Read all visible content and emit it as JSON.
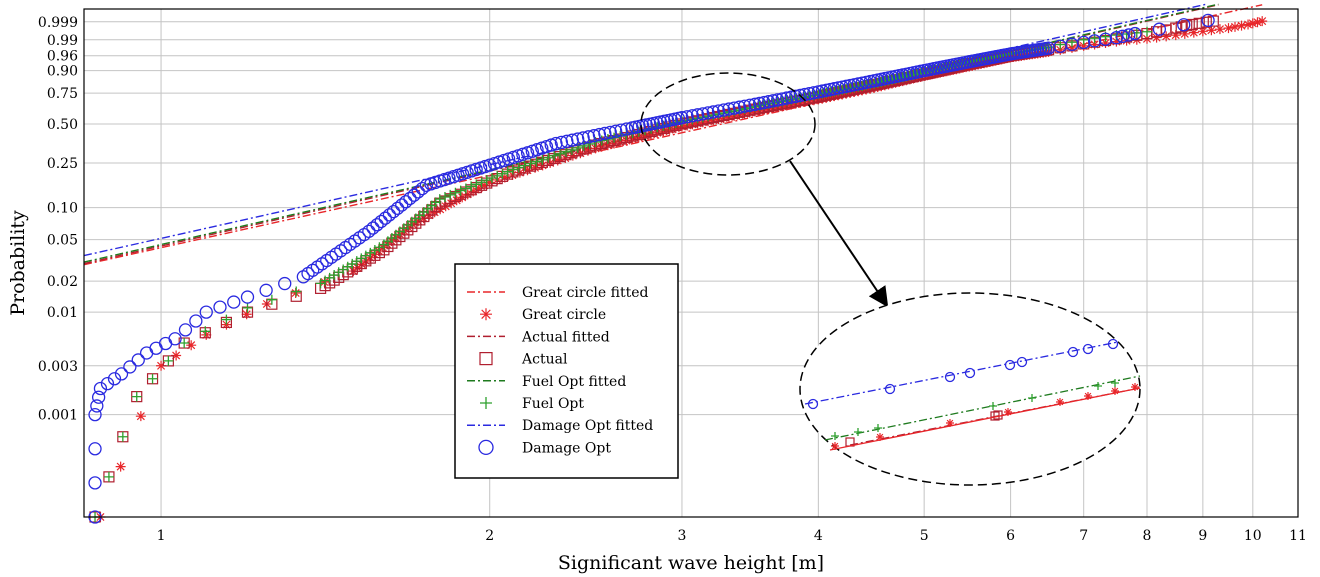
{
  "chart_data": {
    "type": "scatter",
    "xlabel": "Significant wave height [m]",
    "ylabel": "Probability",
    "x_scale": "log",
    "y_scale": "weibull-probability",
    "xlim": [
      0.85,
      11
    ],
    "ylim": [
      0.0001,
      0.9999
    ],
    "x_ticks": [
      1,
      2,
      3,
      4,
      5,
      6,
      7,
      8,
      9,
      10,
      11
    ],
    "x_tick_labels": [
      "1",
      "2",
      "3",
      "4",
      "5",
      "6",
      "7",
      "8",
      "9",
      "10",
      "11"
    ],
    "y_ticks": [
      0.999,
      0.99,
      0.96,
      0.9,
      0.75,
      0.5,
      0.25,
      0.1,
      0.05,
      0.02,
      0.01,
      0.003,
      0.001
    ],
    "y_tick_labels": [
      "0.999",
      "0.99",
      "0.96",
      "0.90",
      "0.75",
      "0.50",
      "0.25",
      "0.10",
      "0.05",
      "0.02",
      "0.01",
      "0.003",
      "0.001"
    ],
    "grid": true,
    "legend_position": "center",
    "series": [
      {
        "name": "Great circle fitted",
        "kind": "line",
        "color": "#e8262a",
        "dash": "dash-dot",
        "x": [
          0.85,
          10.2
        ],
        "y": [
          0.0288,
          0.99996
        ]
      },
      {
        "name": "Great circle",
        "kind": "marker",
        "marker": "asterisk",
        "color": "#e8262a",
        "x": [
          0.88,
          1.0,
          1.1,
          1.25,
          1.5,
          1.7,
          2.0,
          2.5,
          3.0,
          3.5,
          4.0,
          4.5,
          5.0,
          5.5,
          6.0,
          6.5,
          7.0,
          7.5,
          8.0,
          8.5,
          9.0,
          9.5,
          9.9,
          10.2
        ],
        "y": [
          0.0001,
          0.003,
          0.006,
          0.012,
          0.025,
          0.07,
          0.17,
          0.33,
          0.48,
          0.6,
          0.7,
          0.79,
          0.87,
          0.92,
          0.955,
          0.97,
          0.982,
          0.988,
          0.991,
          0.994,
          0.9962,
          0.9975,
          0.9985,
          0.9991
        ]
      },
      {
        "name": "Actual fitted",
        "kind": "line",
        "color": "#b01f2f",
        "dash": "dash-dot",
        "x": [
          0.85,
          9.3
        ],
        "y": [
          0.0295,
          0.99996
        ]
      },
      {
        "name": "Actual",
        "kind": "marker",
        "marker": "square",
        "color": "#b01f2f",
        "x": [
          0.87,
          0.95,
          1.05,
          1.2,
          1.4,
          1.6,
          1.8,
          2.1,
          2.5,
          3.0,
          3.5,
          4.0,
          4.5,
          5.0,
          5.5,
          6.0,
          6.5,
          7.0,
          7.5,
          8.0,
          8.5,
          8.8,
          9.2
        ],
        "y": [
          0.0001,
          0.0015,
          0.005,
          0.01,
          0.017,
          0.04,
          0.11,
          0.21,
          0.35,
          0.5,
          0.62,
          0.72,
          0.81,
          0.88,
          0.93,
          0.96,
          0.975,
          0.985,
          0.991,
          0.995,
          0.9975,
          0.9985,
          0.9991
        ]
      },
      {
        "name": "Fuel Opt fitted",
        "kind": "line",
        "color": "#1e7a1e",
        "dash": "dash-dot",
        "x": [
          0.85,
          9.3
        ],
        "y": [
          0.0305,
          0.999965
        ]
      },
      {
        "name": "Fuel Opt",
        "kind": "marker",
        "marker": "plus",
        "color": "#2ea02e",
        "x": [
          0.87,
          0.95,
          1.05,
          1.2,
          1.4,
          1.6,
          1.8,
          2.1,
          2.5,
          3.0,
          3.5,
          4.0,
          4.5,
          5.0,
          5.5,
          6.0,
          6.5,
          7.0,
          7.5,
          8.0
        ],
        "y": [
          0.0001,
          0.0015,
          0.005,
          0.011,
          0.019,
          0.045,
          0.12,
          0.22,
          0.37,
          0.52,
          0.64,
          0.74,
          0.82,
          0.89,
          0.94,
          0.965,
          0.98,
          0.99,
          0.994,
          0.996
        ]
      },
      {
        "name": "Damage Opt fitted",
        "kind": "line",
        "color": "#2a2ae0",
        "dash": "dash-dot",
        "x": [
          0.85,
          9.1
        ],
        "y": [
          0.0352,
          0.999968
        ]
      },
      {
        "name": "Damage Opt",
        "kind": "marker",
        "marker": "circle",
        "color": "#2a2ae0",
        "x": [
          0.87,
          0.87,
          0.88,
          0.92,
          0.97,
          1.03,
          1.1,
          1.2,
          1.35,
          1.55,
          1.75,
          2.0,
          2.3,
          2.7,
          3.0,
          3.5,
          4.0,
          4.5,
          5.0,
          5.5,
          6.0,
          6.5,
          7.0,
          7.5,
          7.8,
          9.1
        ],
        "y": [
          0.0001,
          0.001,
          0.0018,
          0.0025,
          0.004,
          0.0055,
          0.01,
          0.014,
          0.022,
          0.06,
          0.16,
          0.24,
          0.36,
          0.47,
          0.55,
          0.66,
          0.76,
          0.84,
          0.9,
          0.94,
          0.965,
          0.978,
          0.987,
          0.992,
          0.995,
          0.9992
        ]
      }
    ]
  }
}
